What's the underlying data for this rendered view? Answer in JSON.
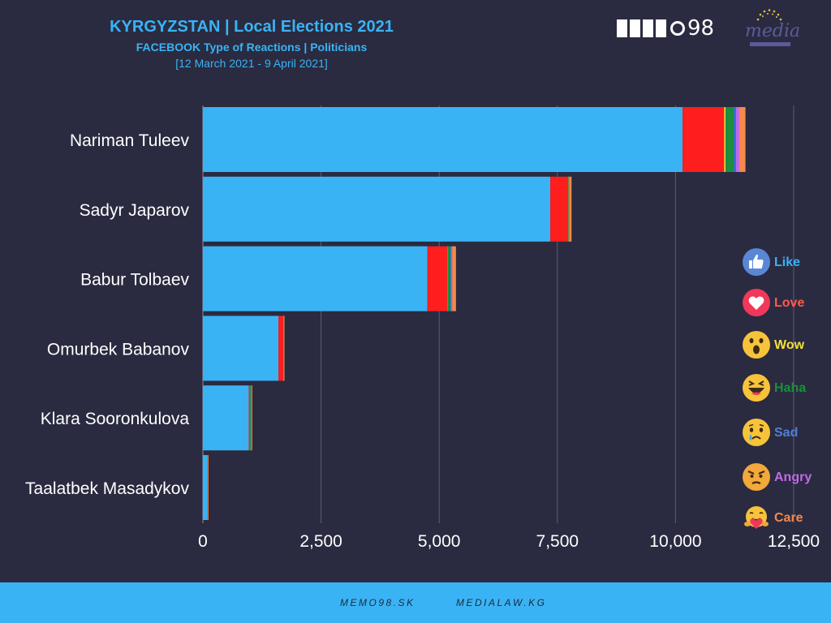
{
  "header": {
    "title": "KYRGYZSTAN | Local Elections 2021",
    "subtitle": "FACEBOOK Type of Reactions | Politicians",
    "daterange": "[12 March 2021 - 9 April 2021]"
  },
  "logos": {
    "memo_number": "98",
    "media_word": "media"
  },
  "footer": {
    "link1": "MEMO98.SK",
    "link2": "MEDIALAW.KG"
  },
  "chart_data": {
    "type": "bar",
    "orientation": "horizontal",
    "stacked": true,
    "categories": [
      "Nariman Tuleev",
      "Sadyr Japarov",
      "Babur Tolbaev",
      "Omurbek Babanov",
      "Klara Sooronkulova",
      "Taalatbek Masadykov"
    ],
    "series": [
      {
        "name": "Like",
        "color": "#3ab3f5",
        "values": [
          10150,
          7350,
          4750,
          1600,
          970,
          100
        ]
      },
      {
        "name": "Love",
        "color": "#ff1e1e",
        "values": [
          880,
          380,
          430,
          100,
          25,
          5
        ]
      },
      {
        "name": "Wow",
        "color": "#f5e03a",
        "values": [
          30,
          5,
          5,
          2,
          3,
          0
        ]
      },
      {
        "name": "Haha",
        "color": "#1a8f3c",
        "values": [
          170,
          10,
          50,
          5,
          20,
          0
        ]
      },
      {
        "name": "Sad",
        "color": "#3a6fd0",
        "values": [
          50,
          5,
          20,
          2,
          10,
          0
        ]
      },
      {
        "name": "Angry",
        "color": "#c06ae6",
        "values": [
          70,
          5,
          20,
          3,
          2,
          0
        ]
      },
      {
        "name": "Care",
        "color": "#f5884a",
        "values": [
          130,
          45,
          80,
          10,
          10,
          5
        ]
      }
    ],
    "xlim": [
      0,
      12500
    ],
    "xticks": [
      0,
      2500,
      5000,
      7500,
      10000,
      12500
    ],
    "xtick_labels": [
      "0",
      "2,500",
      "5,000",
      "7,500",
      "10,000",
      "12,500"
    ],
    "grid": true,
    "legend_position": "right"
  },
  "legend": {
    "items": [
      {
        "label": "Like",
        "icon": "like-icon",
        "color": "#3ab3f5"
      },
      {
        "label": "Love",
        "icon": "love-icon",
        "color": "#ff5a4e"
      },
      {
        "label": "Wow",
        "icon": "wow-icon",
        "color": "#f5e03a"
      },
      {
        "label": "Haha",
        "icon": "haha-icon",
        "color": "#1a8f3c"
      },
      {
        "label": "Sad",
        "icon": "sad-icon",
        "color": "#4f7fd6"
      },
      {
        "label": "Angry",
        "icon": "angry-icon",
        "color": "#c06ae6"
      },
      {
        "label": "Care",
        "icon": "care-icon",
        "color": "#f5884a"
      }
    ]
  }
}
